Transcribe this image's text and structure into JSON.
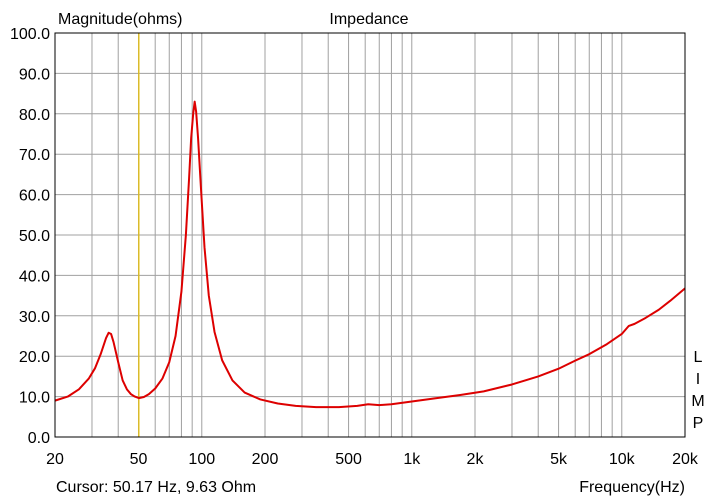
{
  "chart_data": {
    "type": "line",
    "title": "Impedance",
    "ylabel": "Magnitude(ohms)",
    "xlabel": "Frequency(Hz)",
    "cursor_text": "Cursor: 50.17 Hz, 9.63 Ohm",
    "side_label": [
      "L",
      "I",
      "M",
      "P"
    ],
    "x_scale": "log",
    "xlim": [
      20,
      20000
    ],
    "ylim": [
      0,
      100
    ],
    "grid": true,
    "cursor_x": 50.17,
    "x_tick_labels": [
      {
        "value": 20,
        "label": "20"
      },
      {
        "value": 50,
        "label": "50"
      },
      {
        "value": 100,
        "label": "100"
      },
      {
        "value": 200,
        "label": "200"
      },
      {
        "value": 500,
        "label": "500"
      },
      {
        "value": 1000,
        "label": "1k"
      },
      {
        "value": 2000,
        "label": "2k"
      },
      {
        "value": 5000,
        "label": "5k"
      },
      {
        "value": 10000,
        "label": "10k"
      },
      {
        "value": 20000,
        "label": "20k"
      }
    ],
    "y_tick_labels": [
      "0.0",
      "10.0",
      "20.0",
      "30.0",
      "40.0",
      "50.0",
      "60.0",
      "70.0",
      "80.0",
      "90.0",
      "100.0"
    ],
    "series": [
      {
        "color": "#dd0000",
        "points": [
          [
            20,
            9.0
          ],
          [
            23,
            10.0
          ],
          [
            26,
            11.8
          ],
          [
            29,
            14.5
          ],
          [
            31,
            17.0
          ],
          [
            33,
            20.5
          ],
          [
            35,
            24.5
          ],
          [
            36,
            25.8
          ],
          [
            37,
            25.5
          ],
          [
            38,
            23.5
          ],
          [
            40,
            18.5
          ],
          [
            42,
            14.0
          ],
          [
            44,
            11.8
          ],
          [
            46,
            10.6
          ],
          [
            48,
            10.0
          ],
          [
            50.17,
            9.63
          ],
          [
            53,
            9.9
          ],
          [
            56,
            10.6
          ],
          [
            60,
            12.0
          ],
          [
            65,
            14.5
          ],
          [
            70,
            18.5
          ],
          [
            75,
            25.0
          ],
          [
            80,
            36.0
          ],
          [
            84,
            50.0
          ],
          [
            87,
            64.0
          ],
          [
            89,
            74.0
          ],
          [
            91,
            80.0
          ],
          [
            92.5,
            83.0
          ],
          [
            94,
            80.5
          ],
          [
            96,
            74.0
          ],
          [
            99,
            62.0
          ],
          [
            103,
            47.0
          ],
          [
            108,
            35.0
          ],
          [
            115,
            26.0
          ],
          [
            125,
            19.0
          ],
          [
            140,
            14.0
          ],
          [
            160,
            11.0
          ],
          [
            190,
            9.3
          ],
          [
            230,
            8.3
          ],
          [
            280,
            7.7
          ],
          [
            350,
            7.4
          ],
          [
            450,
            7.4
          ],
          [
            550,
            7.7
          ],
          [
            620,
            8.1
          ],
          [
            700,
            7.9
          ],
          [
            800,
            8.1
          ],
          [
            1000,
            8.8
          ],
          [
            1300,
            9.6
          ],
          [
            1700,
            10.4
          ],
          [
            2200,
            11.3
          ],
          [
            3000,
            13.0
          ],
          [
            4000,
            15.0
          ],
          [
            5000,
            16.9
          ],
          [
            6000,
            18.9
          ],
          [
            7000,
            20.5
          ],
          [
            8500,
            23.0
          ],
          [
            10000,
            25.5
          ],
          [
            10800,
            27.5
          ],
          [
            11500,
            28.0
          ],
          [
            13000,
            29.5
          ],
          [
            15000,
            31.5
          ],
          [
            17000,
            33.7
          ],
          [
            20000,
            36.8
          ]
        ]
      }
    ]
  }
}
